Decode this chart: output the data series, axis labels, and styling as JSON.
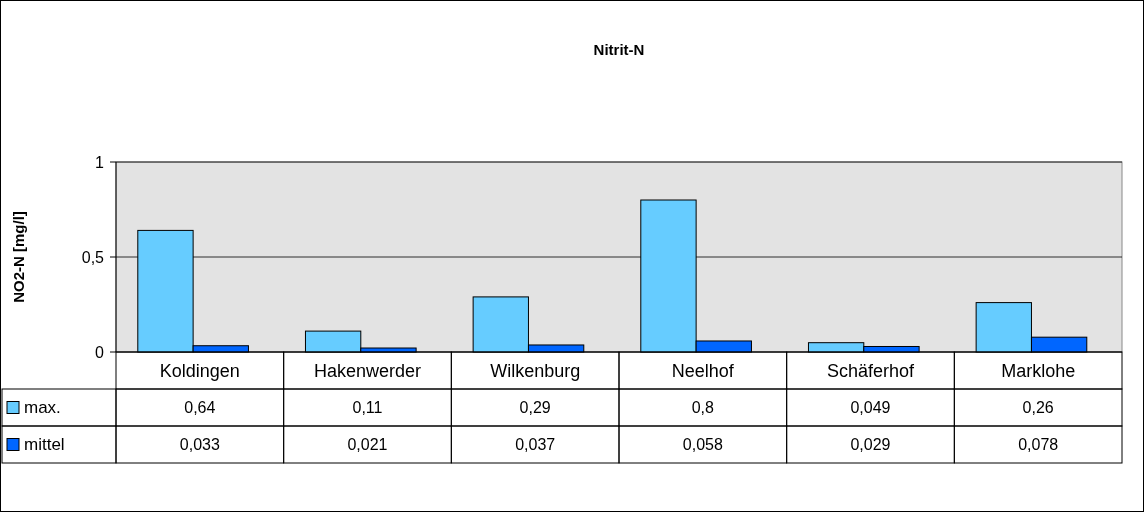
{
  "chart_data": {
    "type": "bar",
    "title": "Nitrit-N",
    "ylabel": "NO2-N [mg/l]",
    "categories": [
      "Koldingen",
      "Hakenwerder",
      "Wilkenburg",
      "Neelhof",
      "Schäferhof",
      "Marklohe"
    ],
    "series": [
      {
        "name": "max.",
        "color": "#66ccff",
        "values": [
          0.64,
          0.11,
          0.29,
          0.8,
          0.049,
          0.26
        ],
        "value_labels": [
          "0,64",
          "0,11",
          "0,29",
          "0,8",
          "0,049",
          "0,26"
        ]
      },
      {
        "name": "mittel",
        "color": "#0066ff",
        "values": [
          0.033,
          0.021,
          0.037,
          0.058,
          0.029,
          0.078
        ],
        "value_labels": [
          "0,033",
          "0,021",
          "0,037",
          "0,058",
          "0,029",
          "0,078"
        ]
      }
    ],
    "ylim": [
      0,
      1
    ],
    "yticks": [
      0,
      {
        "value": 0.5,
        "label": "0,5"
      },
      1
    ],
    "grid": "y",
    "legend": "bottom left"
  }
}
